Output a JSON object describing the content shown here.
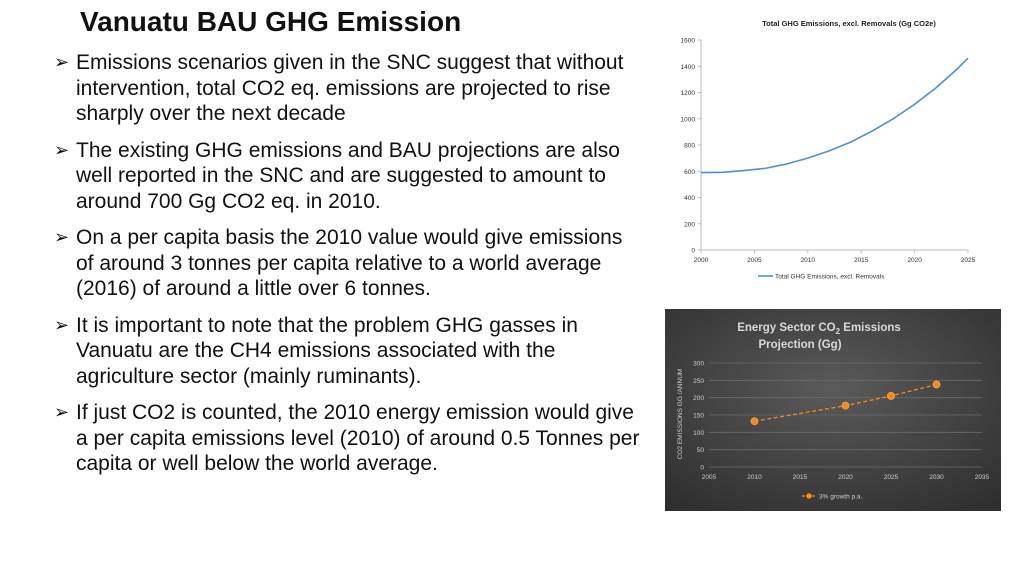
{
  "slide": {
    "title": "Vanuatu BAU GHG Emission",
    "bullets": [
      "Emissions scenarios given in the SNC suggest that without intervention, total CO2 eq. emissions are projected to rise sharply over the next decade",
      "The existing GHG emissions and BAU projections are also well reported in the SNC and are suggested to amount to around 700 Gg CO2 eq. in 2010.",
      "On a per capita basis the 2010 value would give emissions of around 3 tonnes per capita relative to a world average (2016) of around a little over 6 tonnes.",
      "It is important to note that the problem GHG gasses in Vanuatu are the CH4 emissions associated with the agriculture sector (mainly ruminants).",
      "If just CO2 is counted, the 2010 energy emission would give a per capita emissions level (2010) of around 0.5 Tonnes per capita or well below the world average."
    ],
    "bullet_glyph": "➢"
  },
  "chart_data": [
    {
      "type": "line",
      "title": "Total GHG Emissions, excl. Removals (Gg CO2e)",
      "xlabel": "",
      "ylabel": "",
      "xlim": [
        2000,
        2025
      ],
      "ylim": [
        0,
        1600
      ],
      "xticks": [
        2000,
        2005,
        2010,
        2015,
        2020,
        2025
      ],
      "yticks": [
        0,
        200,
        400,
        600,
        800,
        1000,
        1200,
        1400,
        1600
      ],
      "legend": "bottom",
      "grid": false,
      "series": [
        {
          "name": "Total GHG Emissions, excl. Removals",
          "color": "#4f8fcf",
          "x": [
            2000,
            2002,
            2004,
            2006,
            2008,
            2010,
            2012,
            2014,
            2016,
            2018,
            2020,
            2022,
            2024,
            2025
          ],
          "y": [
            590,
            592,
            605,
            622,
            655,
            700,
            755,
            822,
            905,
            1000,
            1110,
            1235,
            1380,
            1462
          ]
        }
      ]
    },
    {
      "type": "line",
      "title_parts": [
        "Energy  Sector CO",
        "2",
        " Emissions"
      ],
      "title_line2": "Projection  (Gg)",
      "ylabel": "CO2 EMISSIONS GG /ANNUM",
      "xlim": [
        2005,
        2035
      ],
      "ylim": [
        0,
        300
      ],
      "xticks": [
        2005,
        2010,
        2015,
        2020,
        2025,
        2030,
        2035
      ],
      "yticks": [
        0,
        50,
        100,
        150,
        200,
        250,
        300
      ],
      "legend": "bottom",
      "grid": true,
      "series": [
        {
          "name": "3% growth p.a.",
          "color": "#f28a1c",
          "x": [
            2010,
            2020,
            2025,
            2030
          ],
          "y": [
            132,
            177,
            205,
            238
          ]
        }
      ]
    }
  ]
}
